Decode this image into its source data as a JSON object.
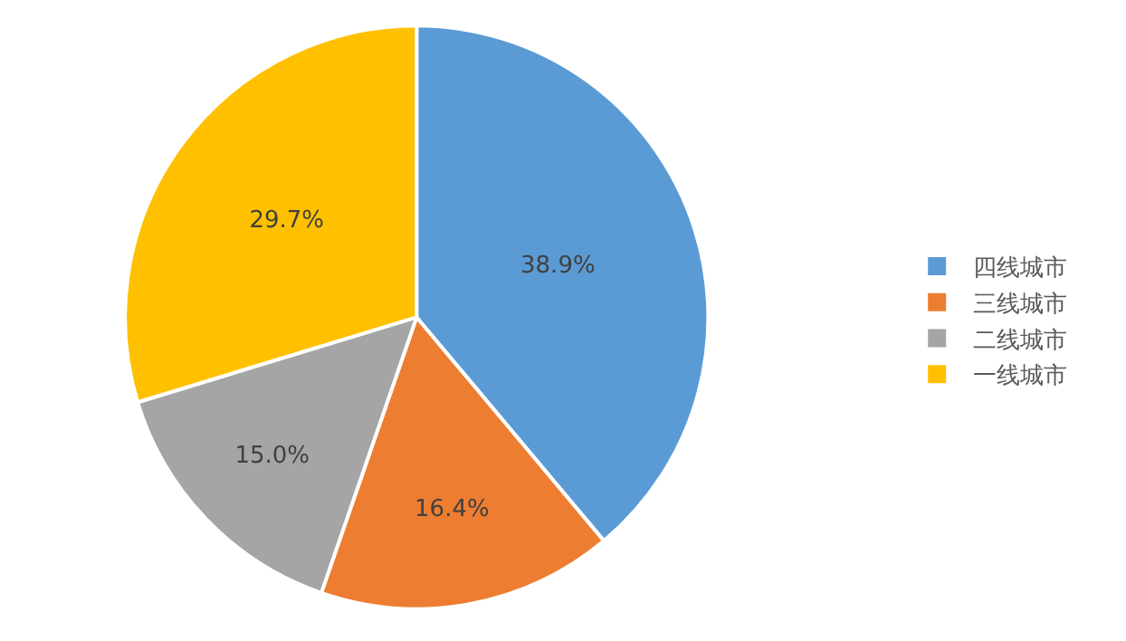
{
  "chart_data": {
    "type": "pie",
    "categories": [
      "四线城市",
      "三线城市",
      "二线城市",
      "一线城市"
    ],
    "values": [
      38.9,
      16.4,
      15.0,
      29.7
    ],
    "value_labels": [
      "38.9%",
      "16.4%",
      "15.0%",
      "29.7%"
    ],
    "colors": [
      "#5b9bd5",
      "#ed7d31",
      "#a5a5a5",
      "#ffc000"
    ],
    "legend": "right"
  }
}
